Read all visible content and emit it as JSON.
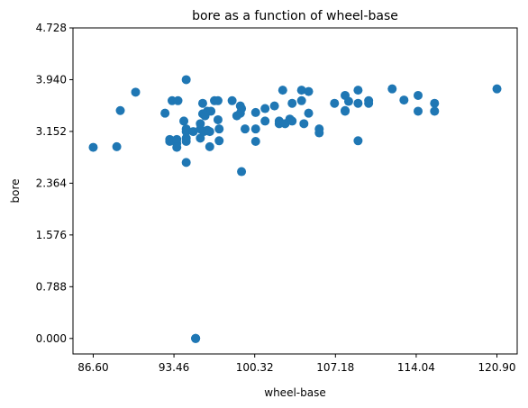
{
  "chart_data": {
    "type": "scatter",
    "title": "bore as a function of wheel-base",
    "xlabel": "wheel-base",
    "ylabel": "bore",
    "xlim": [
      84.88,
      122.62
    ],
    "ylim": [
      -0.236,
      4.728
    ],
    "xticks": [
      86.6,
      93.46,
      100.32,
      107.18,
      114.04,
      120.9
    ],
    "xtick_labels": [
      "86.60",
      "93.46",
      "100.32",
      "107.18",
      "114.04",
      "120.90"
    ],
    "yticks": [
      0.0,
      0.788,
      1.576,
      2.364,
      3.152,
      3.94,
      4.728
    ],
    "ytick_labels": [
      "0.000",
      "0.788",
      "1.576",
      "2.364",
      "3.152",
      "3.940",
      "4.728"
    ],
    "grid": false,
    "marker_color": "#1f77b4",
    "points": [
      {
        "x": 86.6,
        "y": 2.91
      },
      {
        "x": 88.6,
        "y": 2.92
      },
      {
        "x": 88.9,
        "y": 3.47
      },
      {
        "x": 90.2,
        "y": 3.75
      },
      {
        "x": 92.7,
        "y": 3.43
      },
      {
        "x": 93.1,
        "y": 3.03
      },
      {
        "x": 93.1,
        "y": 3.0
      },
      {
        "x": 93.3,
        "y": 3.62
      },
      {
        "x": 93.7,
        "y": 2.97
      },
      {
        "x": 93.7,
        "y": 3.03
      },
      {
        "x": 93.7,
        "y": 2.91
      },
      {
        "x": 93.8,
        "y": 3.62
      },
      {
        "x": 94.3,
        "y": 3.31
      },
      {
        "x": 94.5,
        "y": 3.94
      },
      {
        "x": 94.5,
        "y": 3.19
      },
      {
        "x": 94.5,
        "y": 3.05
      },
      {
        "x": 94.5,
        "y": 3.15
      },
      {
        "x": 94.5,
        "y": 2.68
      },
      {
        "x": 94.5,
        "y": 3.0
      },
      {
        "x": 95.1,
        "y": 3.15
      },
      {
        "x": 95.3,
        "y": 0.0
      },
      {
        "x": 95.3,
        "y": 0.0
      },
      {
        "x": 95.3,
        "y": 0.0
      },
      {
        "x": 95.7,
        "y": 3.05
      },
      {
        "x": 95.7,
        "y": 3.19
      },
      {
        "x": 95.7,
        "y": 3.27
      },
      {
        "x": 95.9,
        "y": 3.58
      },
      {
        "x": 95.9,
        "y": 3.42
      },
      {
        "x": 96.0,
        "y": 3.15
      },
      {
        "x": 96.1,
        "y": 3.39
      },
      {
        "x": 96.3,
        "y": 3.46
      },
      {
        "x": 96.3,
        "y": 3.17
      },
      {
        "x": 96.5,
        "y": 2.92
      },
      {
        "x": 96.5,
        "y": 3.15
      },
      {
        "x": 96.6,
        "y": 3.46
      },
      {
        "x": 96.9,
        "y": 3.62
      },
      {
        "x": 97.2,
        "y": 3.62
      },
      {
        "x": 97.2,
        "y": 3.33
      },
      {
        "x": 97.3,
        "y": 3.19
      },
      {
        "x": 97.3,
        "y": 3.01
      },
      {
        "x": 98.4,
        "y": 3.62
      },
      {
        "x": 98.8,
        "y": 3.39
      },
      {
        "x": 99.1,
        "y": 3.43
      },
      {
        "x": 99.1,
        "y": 3.54
      },
      {
        "x": 99.2,
        "y": 3.5
      },
      {
        "x": 99.2,
        "y": 2.54
      },
      {
        "x": 99.5,
        "y": 3.19
      },
      {
        "x": 100.4,
        "y": 3.19
      },
      {
        "x": 100.4,
        "y": 3.44
      },
      {
        "x": 100.4,
        "y": 3.0
      },
      {
        "x": 101.2,
        "y": 3.5
      },
      {
        "x": 101.2,
        "y": 3.31
      },
      {
        "x": 102.0,
        "y": 3.54
      },
      {
        "x": 102.4,
        "y": 3.31
      },
      {
        "x": 102.4,
        "y": 3.27
      },
      {
        "x": 102.7,
        "y": 3.78
      },
      {
        "x": 102.9,
        "y": 3.27
      },
      {
        "x": 103.3,
        "y": 3.34
      },
      {
        "x": 103.5,
        "y": 3.58
      },
      {
        "x": 103.5,
        "y": 3.31
      },
      {
        "x": 104.3,
        "y": 3.78
      },
      {
        "x": 104.3,
        "y": 3.62
      },
      {
        "x": 104.5,
        "y": 3.27
      },
      {
        "x": 104.9,
        "y": 3.43
      },
      {
        "x": 104.9,
        "y": 3.76
      },
      {
        "x": 105.8,
        "y": 3.19
      },
      {
        "x": 105.8,
        "y": 3.13
      },
      {
        "x": 107.1,
        "y": 3.58
      },
      {
        "x": 108.0,
        "y": 3.46
      },
      {
        "x": 108.0,
        "y": 3.7
      },
      {
        "x": 108.0,
        "y": 3.47
      },
      {
        "x": 108.3,
        "y": 3.61
      },
      {
        "x": 109.1,
        "y": 3.78
      },
      {
        "x": 109.1,
        "y": 3.58
      },
      {
        "x": 109.1,
        "y": 3.01
      },
      {
        "x": 110.0,
        "y": 3.58
      },
      {
        "x": 110.0,
        "y": 3.62
      },
      {
        "x": 112.0,
        "y": 3.8
      },
      {
        "x": 113.0,
        "y": 3.63
      },
      {
        "x": 114.2,
        "y": 3.46
      },
      {
        "x": 114.2,
        "y": 3.7
      },
      {
        "x": 115.6,
        "y": 3.58
      },
      {
        "x": 115.6,
        "y": 3.46
      },
      {
        "x": 120.9,
        "y": 3.8
      }
    ]
  }
}
